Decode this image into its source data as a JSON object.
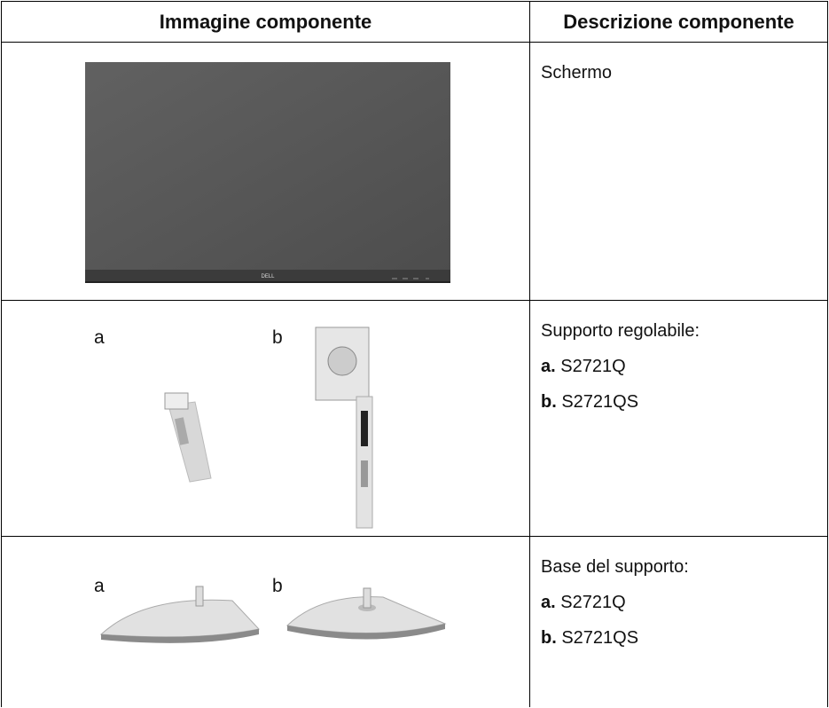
{
  "table": {
    "header": [
      "Immagine componente",
      "Descrizione componente"
    ],
    "rows": [
      {
        "image": {
          "logo": "DELL"
        },
        "description": {
          "title": "Schermo"
        }
      },
      {
        "image": {
          "labels": [
            "a",
            "b"
          ]
        },
        "description": {
          "title": "Supporto regolabile:",
          "items": [
            {
              "marker": "a.",
              "text": "S2721Q"
            },
            {
              "marker": "b.",
              "text": "S2721QS"
            }
          ]
        }
      },
      {
        "image": {
          "labels": [
            "a",
            "b"
          ]
        },
        "description": {
          "title": "Base del supporto:",
          "items": [
            {
              "marker": "a.",
              "text": "S2721Q"
            },
            {
              "marker": "b.",
              "text": "S2721QS"
            }
          ]
        }
      }
    ]
  }
}
